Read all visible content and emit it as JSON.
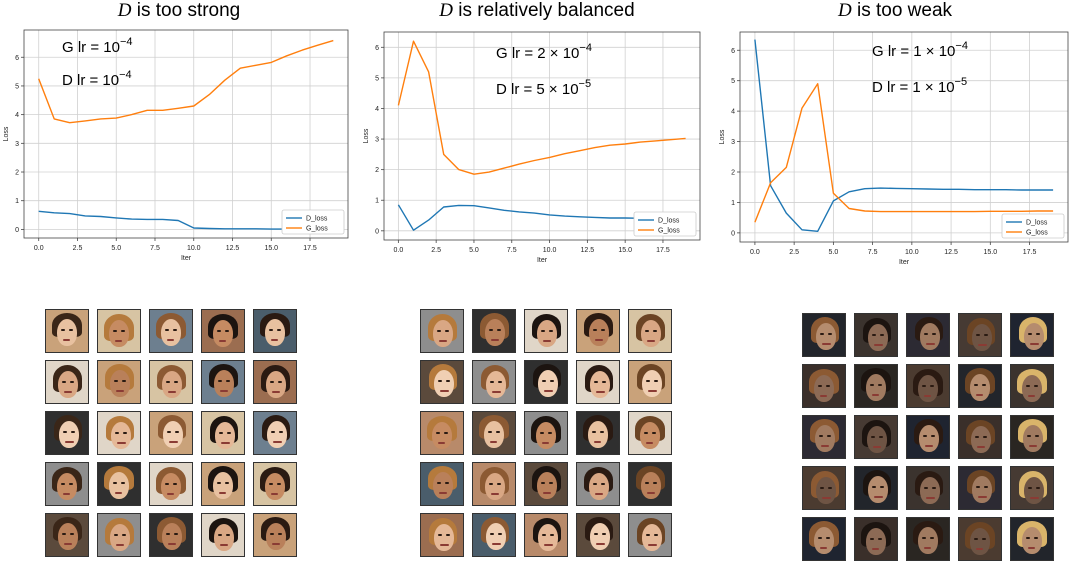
{
  "panels": [
    {
      "title_var": "D",
      "title_rest": " is too strong",
      "g_lr_prefix": "G lr = ",
      "g_lr_coef": "",
      "g_lr_exp": "−4",
      "d_lr_prefix": "D lr = ",
      "d_lr_coef": "",
      "d_lr_exp": "−4",
      "face_tone": "normal"
    },
    {
      "title_var": "D",
      "title_rest": " is relatively balanced",
      "g_lr_prefix": "G lr = ",
      "g_lr_coef": "2  × ",
      "g_lr_exp": "−4",
      "d_lr_prefix": "D lr = ",
      "d_lr_coef": "5  × ",
      "d_lr_exp": "−5",
      "face_tone": "normal"
    },
    {
      "title_var": "D",
      "title_rest": " is too weak",
      "g_lr_prefix": "G lr = ",
      "g_lr_coef": "1  × ",
      "g_lr_exp": "−4",
      "d_lr_prefix": "D lr = ",
      "d_lr_coef": "1  × ",
      "d_lr_exp": "−5",
      "face_tone": "dark"
    }
  ],
  "chart_data": [
    {
      "type": "line",
      "xlabel": "Iter",
      "ylabel": "Loss",
      "xlim": [
        -0.95,
        19.95
      ],
      "ylim": [
        -0.3,
        6.95
      ],
      "xticks": [
        "0.0",
        "2.5",
        "5.0",
        "7.5",
        "10.0",
        "12.5",
        "15.0",
        "17.5"
      ],
      "xtick_values": [
        0,
        2.5,
        5,
        7.5,
        10,
        12.5,
        15,
        17.5
      ],
      "yticks": [
        "0",
        "1",
        "2",
        "3",
        "4",
        "5",
        "6"
      ],
      "ytick_values": [
        0,
        1,
        2,
        3,
        4,
        5,
        6
      ],
      "grid": true,
      "legend": "lower-right",
      "x": [
        0,
        1,
        2,
        3,
        4,
        5,
        6,
        7,
        8,
        9,
        10,
        11,
        12,
        13,
        14,
        15,
        16,
        17,
        18,
        19
      ],
      "series": [
        {
          "name": "D_loss",
          "color": "#1f77b4",
          "values": [
            0.63,
            0.58,
            0.55,
            0.47,
            0.45,
            0.4,
            0.36,
            0.35,
            0.35,
            0.31,
            0.05,
            0.03,
            0.02,
            0.02,
            0.02,
            0.01,
            0.01,
            0.01,
            0.01,
            0.01
          ]
        },
        {
          "name": "G_loss",
          "color": "#ff7f0e",
          "values": [
            5.25,
            3.85,
            3.72,
            3.78,
            3.85,
            3.88,
            4.0,
            4.15,
            4.15,
            4.22,
            4.3,
            4.7,
            5.2,
            5.62,
            5.72,
            5.82,
            6.05,
            6.25,
            6.42,
            6.58
          ]
        }
      ]
    },
    {
      "type": "line",
      "xlabel": "Iter",
      "ylabel": "Loss",
      "xlim": [
        -0.95,
        19.95
      ],
      "ylim": [
        -0.3,
        6.5
      ],
      "xticks": [
        "0.0",
        "2.5",
        "5.0",
        "7.5",
        "10.0",
        "12.5",
        "15.0",
        "17.5"
      ],
      "xtick_values": [
        0,
        2.5,
        5,
        7.5,
        10,
        12.5,
        15,
        17.5
      ],
      "yticks": [
        "0",
        "1",
        "2",
        "3",
        "4",
        "5",
        "6"
      ],
      "ytick_values": [
        0,
        1,
        2,
        3,
        4,
        5,
        6
      ],
      "grid": true,
      "legend": "lower-right",
      "x": [
        0,
        1,
        2,
        3,
        4,
        5,
        6,
        7,
        8,
        9,
        10,
        11,
        12,
        13,
        14,
        15,
        16,
        17,
        18,
        19
      ],
      "series": [
        {
          "name": "D_loss",
          "color": "#1f77b4",
          "values": [
            0.85,
            0.02,
            0.35,
            0.78,
            0.83,
            0.82,
            0.75,
            0.67,
            0.62,
            0.58,
            0.52,
            0.48,
            0.46,
            0.44,
            0.42,
            0.42,
            0.41,
            0.4,
            0.4,
            0.4
          ]
        },
        {
          "name": "G_loss",
          "color": "#ff7f0e",
          "values": [
            4.1,
            6.2,
            5.2,
            2.5,
            2.0,
            1.85,
            1.92,
            2.05,
            2.18,
            2.3,
            2.4,
            2.52,
            2.62,
            2.72,
            2.8,
            2.84,
            2.9,
            2.94,
            2.98,
            3.02
          ]
        }
      ]
    },
    {
      "type": "line",
      "xlabel": "Iter",
      "ylabel": "Loss",
      "xlim": [
        -0.95,
        19.95
      ],
      "ylim": [
        -0.3,
        6.6
      ],
      "xticks": [
        "0.0",
        "2.5",
        "5.0",
        "7.5",
        "10.0",
        "12.5",
        "15.0",
        "17.5"
      ],
      "xtick_values": [
        0,
        2.5,
        5,
        7.5,
        10,
        12.5,
        15,
        17.5
      ],
      "yticks": [
        "0",
        "1",
        "2",
        "3",
        "4",
        "5",
        "6"
      ],
      "ytick_values": [
        0,
        1,
        2,
        3,
        4,
        5,
        6
      ],
      "grid": true,
      "legend": "lower-right",
      "x": [
        0,
        1,
        2,
        3,
        4,
        5,
        6,
        7,
        8,
        9,
        10,
        11,
        12,
        13,
        14,
        15,
        16,
        17,
        18,
        19
      ],
      "series": [
        {
          "name": "D_loss",
          "color": "#1f77b4",
          "values": [
            6.35,
            1.55,
            0.65,
            0.1,
            0.05,
            1.05,
            1.35,
            1.45,
            1.47,
            1.46,
            1.45,
            1.44,
            1.43,
            1.43,
            1.42,
            1.42,
            1.42,
            1.41,
            1.41,
            1.41
          ]
        },
        {
          "name": "G_loss",
          "color": "#ff7f0e",
          "values": [
            0.35,
            1.65,
            2.15,
            4.1,
            4.9,
            1.3,
            0.8,
            0.72,
            0.7,
            0.7,
            0.7,
            0.7,
            0.7,
            0.7,
            0.7,
            0.71,
            0.71,
            0.71,
            0.72,
            0.72
          ]
        }
      ]
    }
  ]
}
